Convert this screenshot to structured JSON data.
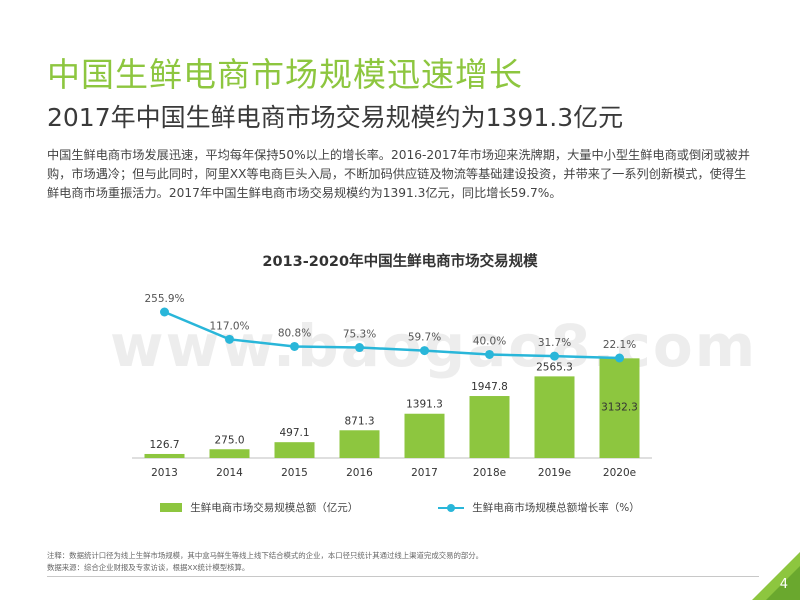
{
  "slide": {
    "title": "中国生鲜电商市场规模迅速增长",
    "subtitle": "2017年中国生鲜电商市场交易规模约为1391.3亿元",
    "body": "中国生鲜电商市场发展迅速，平均每年保持50%以上的增长率。2016-2017年市场迎来洗牌期，大量中小型生鲜电商或倒闭或被并购，市场遇冷；但与此同时，阿里XX等电商巨头入局，不断加码供应链及物流等基础建设投资，并带来了一系列创新模式，使得生鲜电商市场重振活力。2017年中国生鲜电商市场交易规模约为1391.3亿元，同比增长59.7%。",
    "note1": "注释：数据统计口径为线上生鲜市场规模，其中盒马鲜生等线上线下结合模式的企业，本口径只统计其通过线上渠道完成交易的部分。",
    "note2": "数据来源：综合企业财报及专家访谈，根据XX统计模型核算。",
    "page_number": "4",
    "watermark": "www.baogao8.com"
  },
  "colors": {
    "bar": "#8dc63f",
    "line": "#29b6d9",
    "title": "#8dc63f"
  },
  "chart_data": {
    "type": "bar",
    "title": "2013-2020年中国生鲜电商市场交易规模",
    "categories": [
      "2013",
      "2014",
      "2015",
      "2016",
      "2017",
      "2018e",
      "2019e",
      "2020e"
    ],
    "series": [
      {
        "name": "生鲜电商市场交易规模总额（亿元）",
        "type": "bar",
        "values": [
          126.7,
          275.0,
          497.1,
          871.3,
          1391.3,
          1947.8,
          2565.3,
          3132.3
        ],
        "labels": [
          "126.7",
          "275.0",
          "497.1",
          "871.3",
          "1391.3",
          "1947.8",
          "2565.3",
          "3132.3"
        ]
      },
      {
        "name": "生鲜电商市场规模总额增长率（%）",
        "type": "line",
        "values": [
          255.9,
          117.0,
          80.8,
          75.3,
          59.7,
          40.0,
          31.7,
          22.1
        ],
        "labels": [
          "255.9%",
          "117.0%",
          "80.8%",
          "75.3%",
          "59.7%",
          "40.0%",
          "31.7%",
          "22.1%"
        ]
      }
    ],
    "ylim": [
      0,
      3300
    ],
    "y2lim": [
      0,
      270
    ],
    "legend": "bottom"
  }
}
